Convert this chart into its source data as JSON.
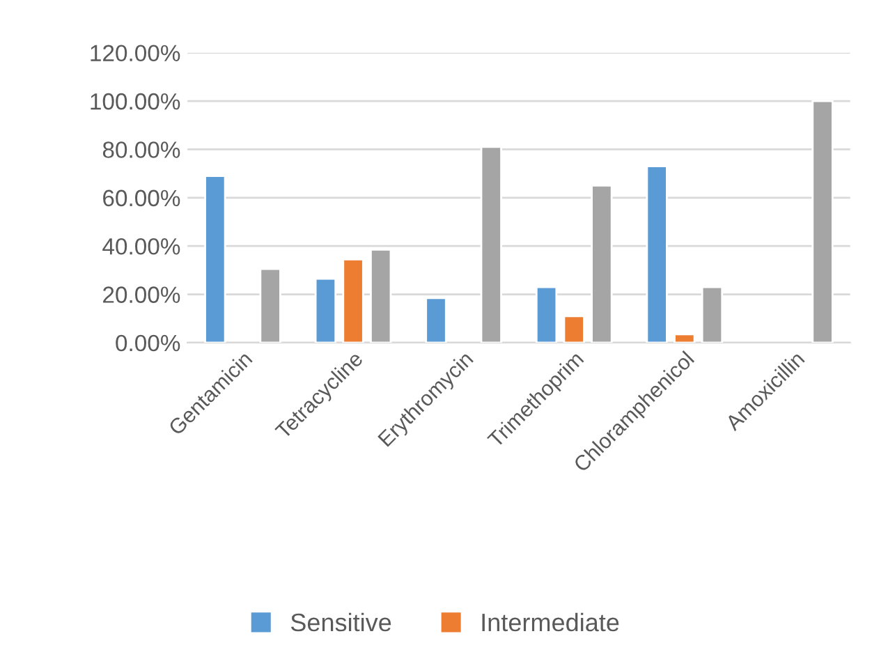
{
  "chart_data": {
    "type": "bar",
    "categories": [
      "Gentamicin",
      "Tetracycline",
      "Erythromycin",
      "Trimethoprim",
      "Chloramphenicol",
      "Amoxicillin"
    ],
    "series": [
      {
        "name": "Sensitive",
        "color": "#5b9bd5",
        "values": [
          69,
          26.5,
          18.5,
          23,
          73,
          null
        ]
      },
      {
        "name": "Intermediate",
        "color": "#ed7d31",
        "values": [
          null,
          34.5,
          null,
          11,
          3.5,
          null
        ]
      },
      {
        "color": "#a5a5a5",
        "values": [
          30.5,
          38.5,
          81,
          65,
          23,
          100
        ]
      }
    ],
    "ylim": [
      0,
      120
    ],
    "yticks": [
      {
        "value": 0,
        "label": "0.00%"
      },
      {
        "value": 20,
        "label": "20.00%"
      },
      {
        "value": 40,
        "label": "40.00%"
      },
      {
        "value": 60,
        "label": "60.00%"
      },
      {
        "value": 80,
        "label": "80.00%"
      },
      {
        "value": 100,
        "label": "100.00%"
      },
      {
        "value": 120,
        "label": "120.00%"
      }
    ],
    "grid": "y",
    "legend": "bottom"
  }
}
